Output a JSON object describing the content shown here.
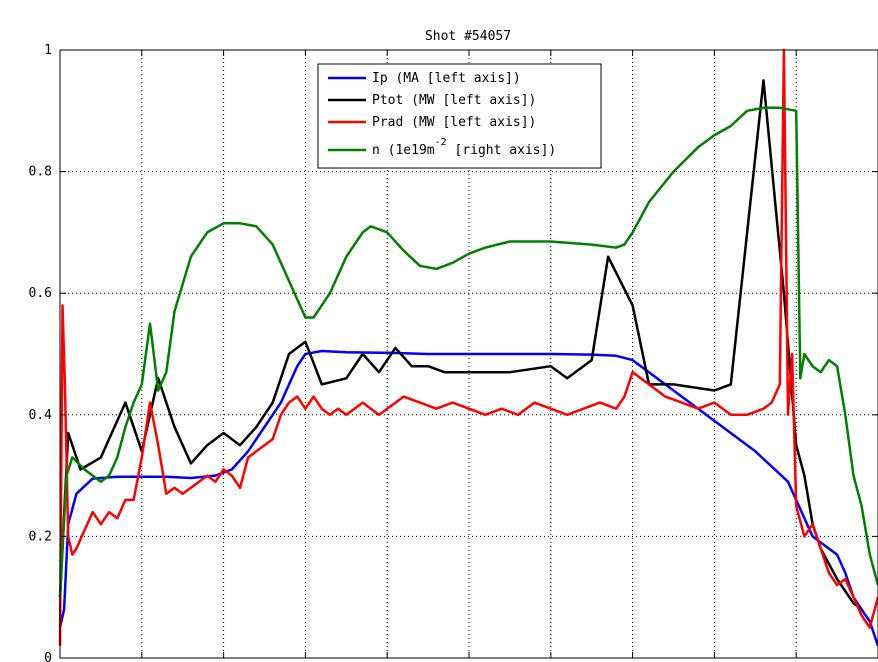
{
  "chart_data": {
    "type": "line",
    "title": "Shot #54057",
    "xlabel": "",
    "ylabel": "",
    "xlim": [
      0,
      1
    ],
    "ylim": [
      0,
      1
    ],
    "y_ticks": [
      0,
      0.2,
      0.4,
      0.6,
      0.8,
      1
    ],
    "y_tick_labels": [
      "0",
      "0.2",
      "0.4",
      "0.6",
      "0.8",
      "1"
    ],
    "x_gridlines": [
      0.1,
      0.2,
      0.3,
      0.4,
      0.5,
      0.6,
      0.7,
      0.8,
      0.9
    ],
    "grid": true,
    "legend_position": "top-center",
    "legend": [
      {
        "label": "Ip (MA [left axis])",
        "color": "#0000ff"
      },
      {
        "label": "Ptot (MW [left axis])",
        "color": "#000000"
      },
      {
        "label": "Prad (MW [left axis])",
        "color": "#ff0000"
      },
      {
        "label_main": "n (1e19m",
        "label_sup": "-2",
        "label_tail": " [right axis])",
        "color": "#008000"
      }
    ],
    "series": [
      {
        "name": "Ip (MA [left axis])",
        "color": "#0000ff",
        "x": [
          0.0,
          0.005,
          0.01,
          0.02,
          0.04,
          0.07,
          0.1,
          0.13,
          0.16,
          0.19,
          0.21,
          0.23,
          0.25,
          0.27,
          0.29,
          0.3,
          0.32,
          0.35,
          0.4,
          0.45,
          0.5,
          0.55,
          0.6,
          0.65,
          0.68,
          0.7,
          0.75,
          0.8,
          0.85,
          0.89,
          0.91,
          0.92,
          0.93,
          0.95,
          0.96,
          0.97,
          0.98,
          0.99,
          1.0
        ],
        "y": [
          0.05,
          0.08,
          0.22,
          0.27,
          0.295,
          0.298,
          0.298,
          0.298,
          0.296,
          0.3,
          0.31,
          0.34,
          0.38,
          0.42,
          0.48,
          0.5,
          0.505,
          0.503,
          0.502,
          0.5,
          0.5,
          0.5,
          0.5,
          0.499,
          0.497,
          0.49,
          0.44,
          0.39,
          0.34,
          0.29,
          0.23,
          0.2,
          0.19,
          0.17,
          0.14,
          0.1,
          0.08,
          0.06,
          0.02
        ]
      },
      {
        "name": "Ptot (MW [left axis])",
        "color": "#000000",
        "x": [
          0.0,
          0.01,
          0.025,
          0.05,
          0.08,
          0.1,
          0.12,
          0.14,
          0.16,
          0.18,
          0.2,
          0.22,
          0.24,
          0.26,
          0.28,
          0.3,
          0.32,
          0.35,
          0.37,
          0.39,
          0.41,
          0.43,
          0.45,
          0.47,
          0.5,
          0.55,
          0.6,
          0.62,
          0.65,
          0.67,
          0.7,
          0.72,
          0.75,
          0.8,
          0.82,
          0.86,
          0.885,
          0.9,
          0.91,
          0.92,
          0.93,
          0.95,
          0.97,
          0.98
        ],
        "y": [
          0.1,
          0.37,
          0.31,
          0.33,
          0.42,
          0.34,
          0.46,
          0.38,
          0.32,
          0.35,
          0.37,
          0.35,
          0.38,
          0.42,
          0.5,
          0.52,
          0.45,
          0.46,
          0.5,
          0.47,
          0.51,
          0.48,
          0.48,
          0.47,
          0.47,
          0.47,
          0.48,
          0.46,
          0.49,
          0.66,
          0.58,
          0.45,
          0.45,
          0.44,
          0.45,
          0.95,
          0.6,
          0.35,
          0.3,
          0.22,
          0.18,
          0.13,
          0.09,
          0.08
        ]
      },
      {
        "name": "Prad (MW [left axis])",
        "color": "#ff0000",
        "x": [
          0.0,
          0.003,
          0.006,
          0.01,
          0.015,
          0.02,
          0.03,
          0.04,
          0.05,
          0.06,
          0.07,
          0.08,
          0.09,
          0.1,
          0.11,
          0.12,
          0.13,
          0.14,
          0.15,
          0.16,
          0.17,
          0.18,
          0.19,
          0.2,
          0.21,
          0.22,
          0.23,
          0.24,
          0.25,
          0.26,
          0.27,
          0.28,
          0.29,
          0.3,
          0.31,
          0.32,
          0.33,
          0.34,
          0.35,
          0.36,
          0.37,
          0.38,
          0.39,
          0.4,
          0.42,
          0.44,
          0.46,
          0.48,
          0.5,
          0.52,
          0.54,
          0.56,
          0.58,
          0.6,
          0.62,
          0.64,
          0.66,
          0.68,
          0.69,
          0.7,
          0.72,
          0.74,
          0.76,
          0.78,
          0.8,
          0.82,
          0.84,
          0.86,
          0.87,
          0.88,
          0.885,
          0.89,
          0.895,
          0.9,
          0.91,
          0.92,
          0.93,
          0.94,
          0.95,
          0.96,
          0.97,
          0.98,
          0.99,
          1.0
        ],
        "y": [
          0.02,
          0.58,
          0.45,
          0.2,
          0.17,
          0.18,
          0.21,
          0.24,
          0.22,
          0.24,
          0.23,
          0.26,
          0.26,
          0.33,
          0.42,
          0.35,
          0.27,
          0.28,
          0.27,
          0.28,
          0.29,
          0.3,
          0.29,
          0.31,
          0.3,
          0.28,
          0.33,
          0.34,
          0.35,
          0.36,
          0.4,
          0.42,
          0.43,
          0.41,
          0.43,
          0.41,
          0.4,
          0.41,
          0.4,
          0.41,
          0.42,
          0.41,
          0.4,
          0.41,
          0.43,
          0.42,
          0.41,
          0.42,
          0.41,
          0.4,
          0.41,
          0.4,
          0.42,
          0.41,
          0.4,
          0.41,
          0.42,
          0.41,
          0.43,
          0.47,
          0.45,
          0.43,
          0.42,
          0.41,
          0.42,
          0.4,
          0.4,
          0.41,
          0.42,
          0.45,
          1.0,
          0.4,
          0.5,
          0.25,
          0.2,
          0.22,
          0.18,
          0.14,
          0.12,
          0.13,
          0.1,
          0.07,
          0.05,
          0.1
        ]
      },
      {
        "name": "n (1e19m-2 [right axis])",
        "color": "#008000",
        "x": [
          0.0,
          0.008,
          0.015,
          0.03,
          0.05,
          0.06,
          0.07,
          0.08,
          0.09,
          0.1,
          0.11,
          0.12,
          0.13,
          0.14,
          0.16,
          0.18,
          0.2,
          0.22,
          0.24,
          0.26,
          0.28,
          0.3,
          0.31,
          0.33,
          0.35,
          0.37,
          0.38,
          0.4,
          0.42,
          0.44,
          0.46,
          0.48,
          0.5,
          0.52,
          0.55,
          0.6,
          0.65,
          0.68,
          0.69,
          0.7,
          0.72,
          0.75,
          0.78,
          0.8,
          0.82,
          0.84,
          0.86,
          0.88,
          0.9,
          0.905,
          0.91,
          0.92,
          0.93,
          0.94,
          0.95,
          0.96,
          0.97,
          0.98,
          0.99,
          1.0
        ],
        "y": [
          0.1,
          0.3,
          0.33,
          0.31,
          0.29,
          0.3,
          0.33,
          0.38,
          0.42,
          0.45,
          0.55,
          0.44,
          0.47,
          0.57,
          0.66,
          0.7,
          0.715,
          0.715,
          0.71,
          0.68,
          0.62,
          0.56,
          0.56,
          0.6,
          0.66,
          0.7,
          0.71,
          0.7,
          0.67,
          0.645,
          0.64,
          0.65,
          0.665,
          0.675,
          0.685,
          0.685,
          0.68,
          0.675,
          0.68,
          0.7,
          0.75,
          0.8,
          0.84,
          0.86,
          0.875,
          0.9,
          0.905,
          0.905,
          0.9,
          0.46,
          0.5,
          0.48,
          0.47,
          0.49,
          0.48,
          0.4,
          0.3,
          0.25,
          0.17,
          0.12
        ]
      }
    ]
  }
}
